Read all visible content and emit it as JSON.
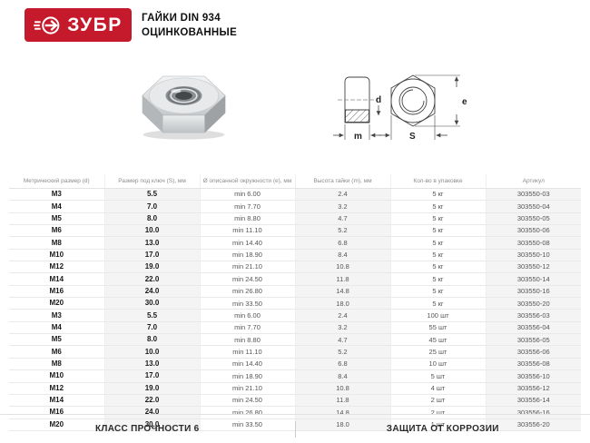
{
  "colors": {
    "brand_red": "#c51a2b"
  },
  "header": {
    "brand": "ЗУБР",
    "title_line1": "ГАЙКИ DIN 934",
    "title_line2": "ОЦИНКОВАННЫЕ"
  },
  "diagram": {
    "label_d": "d",
    "label_m": "m",
    "label_s": "S",
    "label_e": "e"
  },
  "table": {
    "columns": [
      "Метрический размер (d)",
      "Размер под ключ (S), мм",
      "Ø описанной окружности (e), мм",
      "Высота гайки (m), мм",
      "Кол-во в упаковке",
      "Артикул"
    ],
    "rows": [
      [
        "M3",
        "5.5",
        "min 6.00",
        "2.4",
        "5 кг",
        "303550-03"
      ],
      [
        "M4",
        "7.0",
        "min 7.70",
        "3.2",
        "5 кг",
        "303550-04"
      ],
      [
        "M5",
        "8.0",
        "min 8.80",
        "4.7",
        "5 кг",
        "303550-05"
      ],
      [
        "M6",
        "10.0",
        "min 11.10",
        "5.2",
        "5 кг",
        "303550-06"
      ],
      [
        "M8",
        "13.0",
        "min 14.40",
        "6.8",
        "5 кг",
        "303550-08"
      ],
      [
        "M10",
        "17.0",
        "min 18.90",
        "8.4",
        "5 кг",
        "303550-10"
      ],
      [
        "M12",
        "19.0",
        "min 21.10",
        "10.8",
        "5 кг",
        "303550-12"
      ],
      [
        "M14",
        "22.0",
        "min 24.50",
        "11.8",
        "5 кг",
        "303550-14"
      ],
      [
        "M16",
        "24.0",
        "min 26.80",
        "14.8",
        "5 кг",
        "303550-16"
      ],
      [
        "M20",
        "30.0",
        "min 33.50",
        "18.0",
        "5 кг",
        "303550-20"
      ],
      [
        "M3",
        "5.5",
        "min 6.00",
        "2.4",
        "100 шт",
        "303556-03"
      ],
      [
        "M4",
        "7.0",
        "min 7.70",
        "3.2",
        "55 шт",
        "303556-04"
      ],
      [
        "M5",
        "8.0",
        "min 8.80",
        "4.7",
        "45 шт",
        "303556-05"
      ],
      [
        "M6",
        "10.0",
        "min 11.10",
        "5.2",
        "25 шт",
        "303556-06"
      ],
      [
        "M8",
        "13.0",
        "min 14.40",
        "6.8",
        "10 шт",
        "303556-08"
      ],
      [
        "M10",
        "17.0",
        "min 18.90",
        "8.4",
        "5 шт",
        "303556-10"
      ],
      [
        "M12",
        "19.0",
        "min 21.10",
        "10.8",
        "4 шт",
        "303556-12"
      ],
      [
        "M14",
        "22.0",
        "min 24.50",
        "11.8",
        "2 шт",
        "303556-14"
      ],
      [
        "M16",
        "24.0",
        "min 26.80",
        "14.8",
        "2 шт",
        "303556-16"
      ],
      [
        "M20",
        "30.0",
        "min 33.50",
        "18.0",
        "1 шт",
        "303556-20"
      ]
    ]
  },
  "footer": {
    "left": "КЛАСС ПРОЧНОСТИ 6",
    "right": "ЗАЩИТА ОТ КОРРОЗИИ"
  }
}
